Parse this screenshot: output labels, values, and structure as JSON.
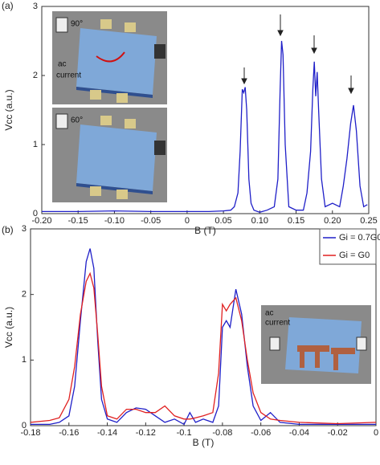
{
  "chart_data": [
    {
      "type": "line",
      "panel_label": "(a)",
      "xlabel": "B (T)",
      "ylabel": "Vcc (a.u.)",
      "x": [
        -0.2,
        -0.15,
        -0.1,
        -0.05,
        0,
        0.03,
        0.05,
        0.06,
        0.065,
        0.07,
        0.073,
        0.076,
        0.078,
        0.08,
        0.082,
        0.085,
        0.088,
        0.092,
        0.1,
        0.11,
        0.12,
        0.125,
        0.128,
        0.13,
        0.132,
        0.135,
        0.14,
        0.15,
        0.16,
        0.165,
        0.17,
        0.173,
        0.175,
        0.177,
        0.179,
        0.181,
        0.185,
        0.19,
        0.2,
        0.21,
        0.215,
        0.22,
        0.225,
        0.229,
        0.233,
        0.238,
        0.243,
        0.248
      ],
      "series": [
        {
          "color": "#1f1fc8",
          "values": [
            0.03,
            0.03,
            0.04,
            0.03,
            0.03,
            0.03,
            0.04,
            0.05,
            0.1,
            0.3,
            0.9,
            1.8,
            1.75,
            1.83,
            1.5,
            0.5,
            0.15,
            0.05,
            0.02,
            0.05,
            0.1,
            0.5,
            1.8,
            2.5,
            2.3,
            1.0,
            0.1,
            0.05,
            0.05,
            0.3,
            0.9,
            1.8,
            2.2,
            1.7,
            2.05,
            1.5,
            0.5,
            0.1,
            0.15,
            0.1,
            0.4,
            0.8,
            1.3,
            1.57,
            1.2,
            0.4,
            0.1,
            0.13
          ]
        }
      ],
      "xlim": [
        -0.2,
        0.25
      ],
      "xticks": [
        {
          "value": -0.2,
          "label": "-0.20"
        },
        -0.15,
        {
          "value": -0.1,
          "label": "-0.10"
        },
        -0.05,
        0,
        0.05,
        {
          "value": 0.1,
          "label": "0.10"
        },
        0.15,
        {
          "value": 0.2,
          "label": "0.20"
        },
        0.25
      ],
      "ylim": [
        0,
        3
      ],
      "yticks": [
        0,
        1,
        2,
        3
      ],
      "annotations": [
        "90°",
        "ac",
        "current",
        "60°"
      ]
    },
    {
      "type": "line",
      "panel_label": "(b)",
      "xlabel": "B (T)",
      "ylabel": "Vcc (a.u.)",
      "x": [
        -0.18,
        -0.17,
        -0.165,
        -0.16,
        -0.157,
        -0.154,
        -0.151,
        -0.149,
        -0.147,
        -0.145,
        -0.143,
        -0.14,
        -0.135,
        -0.13,
        -0.125,
        -0.12,
        -0.115,
        -0.11,
        -0.105,
        -0.1,
        -0.097,
        -0.094,
        -0.09,
        -0.085,
        -0.082,
        -0.08,
        -0.078,
        -0.076,
        -0.073,
        -0.07,
        -0.067,
        -0.064,
        -0.06,
        -0.055,
        -0.05,
        -0.04,
        -0.02,
        0
      ],
      "series": [
        {
          "name": "Gi = 0.7G0",
          "color": "#1f1fc8",
          "values": [
            0.02,
            0.02,
            0.05,
            0.15,
            0.6,
            1.6,
            2.5,
            2.7,
            2.4,
            1.3,
            0.4,
            0.1,
            0.05,
            0.2,
            0.27,
            0.25,
            0.15,
            0.05,
            0.1,
            0.02,
            0.2,
            0.05,
            0.1,
            0.05,
            0.3,
            1.5,
            1.6,
            1.5,
            2.08,
            1.7,
            0.9,
            0.3,
            0.08,
            0.2,
            0.05,
            0.02,
            0.02,
            0.02
          ]
        },
        {
          "name": "Gi = G0",
          "color": "#e02020",
          "values": [
            0.05,
            0.08,
            0.12,
            0.4,
            0.9,
            1.7,
            2.2,
            2.32,
            2.1,
            1.4,
            0.6,
            0.15,
            0.1,
            0.25,
            0.25,
            0.2,
            0.2,
            0.3,
            0.15,
            0.1,
            0.1,
            0.12,
            0.15,
            0.2,
            0.8,
            1.85,
            1.75,
            1.85,
            1.95,
            1.6,
            1.0,
            0.5,
            0.2,
            0.1,
            0.08,
            0.05,
            0.03,
            0.05
          ]
        }
      ],
      "xlim": [
        -0.18,
        0
      ],
      "xticks": [
        -0.18,
        -0.16,
        -0.14,
        -0.12,
        -0.1,
        -0.08,
        -0.06,
        -0.04,
        -0.02,
        0
      ],
      "ylim": [
        0,
        3
      ],
      "yticks": [
        0,
        1,
        2,
        3
      ],
      "legend": "upper right",
      "annotations": [
        "ac",
        "current"
      ]
    }
  ]
}
